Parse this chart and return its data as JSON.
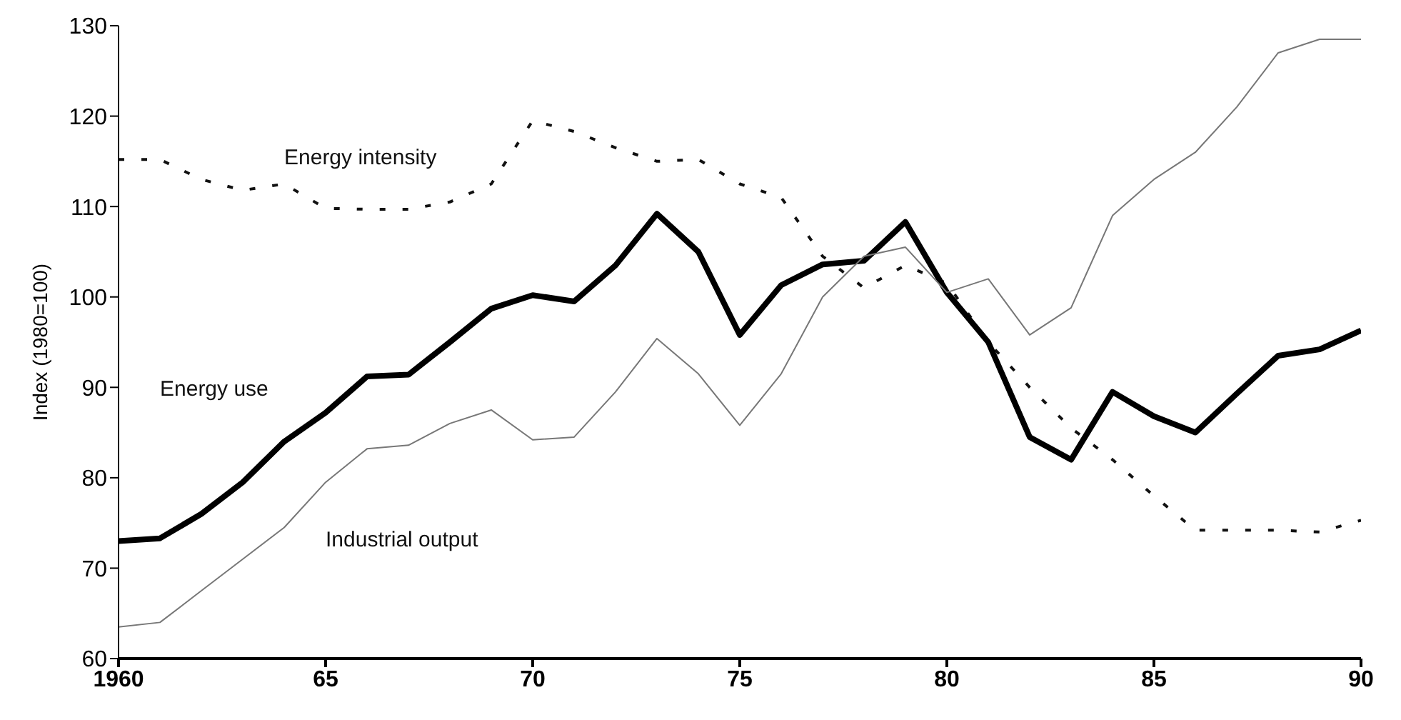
{
  "chart_data": {
    "type": "line",
    "ylabel": "Index (1980=100)",
    "x": [
      1960,
      1961,
      1962,
      1963,
      1964,
      1965,
      1966,
      1967,
      1968,
      1969,
      1970,
      1971,
      1972,
      1973,
      1974,
      1975,
      1976,
      1977,
      1978,
      1979,
      1980,
      1981,
      1982,
      1983,
      1984,
      1985,
      1986,
      1987,
      1988,
      1989,
      1990
    ],
    "series": [
      {
        "name": "Energy intensity",
        "color": "#111111",
        "line_style": "dashed",
        "values": [
          115.2,
          115.2,
          113,
          111.8,
          112.5,
          109.8,
          109.7,
          109.7,
          110.5,
          112.5,
          119.5,
          118.3,
          116.5,
          115,
          115.2,
          112.5,
          111,
          104.5,
          101,
          103.5,
          101.5,
          95,
          90,
          85.5,
          82,
          78,
          74.2,
          74.2,
          74.2,
          74,
          75.3
        ]
      },
      {
        "name": "Energy use",
        "color": "#000000",
        "line_style": "solid",
        "values": [
          73,
          73.3,
          76,
          79.5,
          84,
          87.2,
          91.2,
          91.4,
          95,
          98.7,
          100.2,
          99.5,
          103.5,
          109.2,
          105,
          95.8,
          101.3,
          103.6,
          104,
          108.3,
          100.5,
          95,
          84.5,
          82,
          89.5,
          86.8,
          85,
          89.3,
          93.5,
          94.2,
          96.3
        ]
      },
      {
        "name": "Industrial output",
        "color": "#777777",
        "line_style": "solid",
        "values": [
          63.5,
          64,
          67.5,
          71,
          74.5,
          79.5,
          83.2,
          83.6,
          86,
          87.5,
          84.2,
          84.5,
          89.5,
          95.4,
          91.5,
          85.8,
          91.5,
          100,
          104.5,
          105.5,
          100.5,
          102,
          95.8,
          98.8,
          109,
          113,
          116,
          121,
          127,
          128.5,
          128.5
        ]
      }
    ],
    "xlim": [
      1960,
      1990
    ],
    "xticks": [
      1960,
      {
        "value": 1965,
        "label": "65"
      },
      {
        "value": 1970,
        "label": "70"
      },
      {
        "value": 1975,
        "label": "75"
      },
      {
        "value": 1980,
        "label": "80"
      },
      {
        "value": 1985,
        "label": "85"
      },
      {
        "value": 1990,
        "label": "90"
      }
    ],
    "ylim": [
      60,
      130
    ],
    "yticks": [
      60,
      70,
      80,
      90,
      100,
      110,
      120,
      130
    ],
    "marker": "none"
  }
}
